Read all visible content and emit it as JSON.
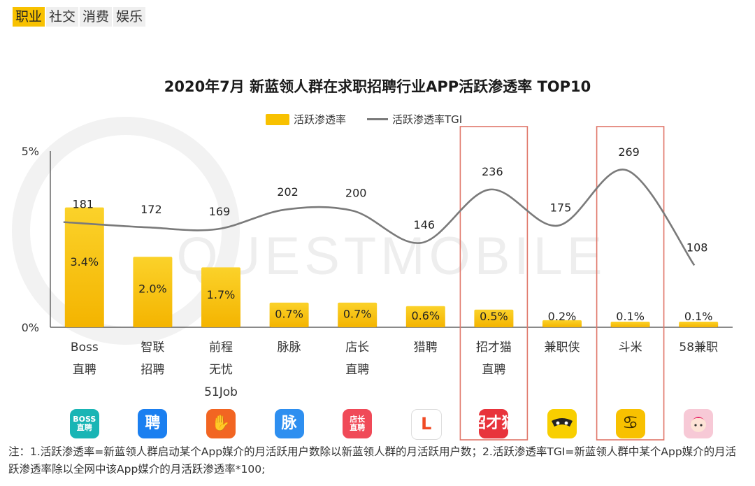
{
  "tabs": [
    {
      "label": "职业",
      "active": true
    },
    {
      "label": "社交",
      "active": false
    },
    {
      "label": "消费",
      "active": false
    },
    {
      "label": "娱乐",
      "active": false
    }
  ],
  "watermark": "QUESTMOBILE",
  "legend": {
    "bar_label": "活跃渗透率",
    "line_label": "活跃渗透率TGI"
  },
  "colors": {
    "bar": "#f8c100",
    "bar_gradient_top": "#fbd22a",
    "bar_gradient_bottom": "#f4b400",
    "line": "#7a7a7a",
    "highlight_box": "#e0776a",
    "tab_active": "#f8c100"
  },
  "chart_data": {
    "type": "bar",
    "title": "2020年7月 新蓝领人群在求职招聘行业APP活跃渗透率 TOP10",
    "categories": [
      "Boss\n直聘",
      "智联\n招聘",
      "前程\n无忧\n51Job",
      "脉脉",
      "店长\n直聘",
      "猎聘",
      "招才猫\n直聘",
      "兼职侠",
      "斗米",
      "58兼职"
    ],
    "series": [
      {
        "name": "活跃渗透率",
        "type": "bar",
        "values": [
          3.4,
          2.0,
          1.7,
          0.7,
          0.7,
          0.6,
          0.5,
          0.2,
          0.1,
          0.1
        ],
        "labels": [
          "3.4%",
          "2.0%",
          "1.7%",
          "0.7%",
          "0.7%",
          "0.6%",
          "0.5%",
          "0.2%",
          "0.1%",
          "0.1%"
        ]
      },
      {
        "name": "活跃渗透率TGI",
        "type": "line",
        "values": [
          181,
          172,
          169,
          202,
          200,
          146,
          236,
          175,
          269,
          108
        ]
      }
    ],
    "yticks": [
      "0%",
      "5%"
    ],
    "ylim": [
      0,
      5
    ],
    "highlighted": [
      "招才猫\n直聘",
      "斗米"
    ],
    "legend_position": "top-center"
  },
  "app_icons": [
    {
      "icon": "boss-zhipin-icon",
      "text": "BOSS\n直聘",
      "color": "#19b5b5"
    },
    {
      "icon": "zhilian-icon",
      "text": "聘",
      "color": "#1b7ff0"
    },
    {
      "icon": "51job-icon",
      "text": "✋",
      "color": "#f26522"
    },
    {
      "icon": "maimai-icon",
      "text": "脉",
      "color": "#2e8ff0"
    },
    {
      "icon": "dianzhang-icon",
      "text": "店长\n直聘",
      "color": "#f04a58"
    },
    {
      "icon": "liepin-icon",
      "text": "L",
      "color": "#ffffff"
    },
    {
      "icon": "zhaocaimao-icon",
      "text": "招才猫",
      "color": "#e8343c"
    },
    {
      "icon": "jianzhixia-icon",
      "text": "",
      "color": "#f8cf00"
    },
    {
      "icon": "doumi-icon",
      "text": "♋",
      "color": "#f8c100"
    },
    {
      "icon": "58jianzhi-icon",
      "text": "",
      "color": "#f7c9d6"
    }
  ],
  "notes": "注：1.活跃渗透率=新蓝领人群启动某个App媒介的月活跃用户数除以新蓝领人群的月活跃用户数；2.活跃渗透率TGI=新蓝领人群中某个App媒介的月活跃渗透率除以全网中该App媒介的月活跃渗透率*100;"
}
